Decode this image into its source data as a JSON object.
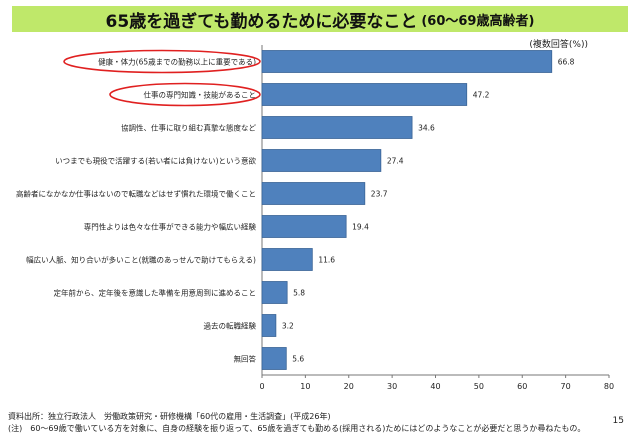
{
  "title": {
    "main": "65歳を過ぎても勤めるために必要なこと",
    "sub": "(60～69歳高齢者)"
  },
  "note": "(複数回答(%))",
  "source": "資料出所：独立行政法人　労働政策研究・研修機構「60代の雇用・生活調査」(平成26年)",
  "footnote": "(注)　60～69歳で働いている方を対象に、自身の経験を振り返って、65歳を過ぎても勤める(採用される)ためにはどのようなことが必要だと思うか尋ねたもの。",
  "page_number": "15",
  "colors": {
    "bar": "#4f81bd",
    "bar_border": "#3a6496",
    "highlight": "#e02020",
    "title_bg": "#bfe86a"
  },
  "chart_data": {
    "type": "bar",
    "orientation": "horizontal",
    "categories": [
      "健康・体力(65歳までの勤務以上に重要である)",
      "仕事の専門知識・技能があること",
      "協調性、仕事に取り組む真摯な態度など",
      "いつまでも現役で活躍する(若い者には負けない)という意欲",
      "高齢者になかなか仕事はないので転職などはせず慣れた環境で働くこと",
      "専門性よりは色々な仕事ができる能力や幅広い経験",
      "幅広い人脈、知り合いが多いこと(就職のあっせんで助けてもらえる)",
      "定年前から、定年後を意識した準備を用意周到に進めること",
      "過去の転職経験",
      "無回答"
    ],
    "values": [
      66.8,
      47.2,
      34.6,
      27.4,
      23.7,
      19.4,
      11.6,
      5.8,
      3.2,
      5.6
    ],
    "value_labels": [
      "66.8",
      "47.2",
      "34.6",
      "27.4",
      "23.7",
      "19.4",
      "11.6",
      "5.8",
      "3.2",
      "5.6"
    ],
    "highlighted": [
      0,
      1
    ],
    "xlim": [
      0,
      80
    ],
    "xticks": [
      "0",
      "10",
      "20",
      "30",
      "40",
      "50",
      "60",
      "70",
      "80"
    ],
    "grid": false
  }
}
